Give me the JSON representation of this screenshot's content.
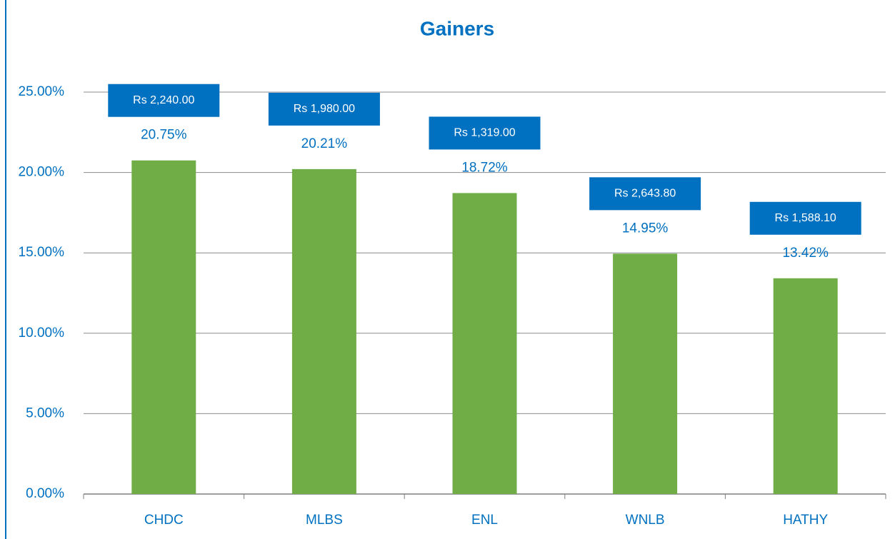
{
  "chart_data": {
    "type": "bar",
    "title": "Gainers",
    "categories": [
      "CHDC",
      "MLBS",
      "ENL",
      "WNLB",
      "HATHY"
    ],
    "values": [
      20.75,
      20.21,
      18.72,
      14.95,
      13.42
    ],
    "value_labels": [
      "20.75%",
      "20.21%",
      "18.72%",
      "14.95%",
      "13.42%"
    ],
    "annotations": [
      "Rs 2,240.00",
      "Rs 1,980.00",
      "Rs 1,319.00",
      "Rs 2,643.80",
      "Rs 1,588.10"
    ],
    "color": "#70ad47",
    "annotation_color": "#0070c0",
    "ylim": [
      0,
      25
    ],
    "yticks": [
      {
        "value": 0,
        "label": "0.00%"
      },
      {
        "value": 5,
        "label": "5.00%"
      },
      {
        "value": 10,
        "label": "10.00%"
      },
      {
        "value": 15,
        "label": "15.00%"
      },
      {
        "value": 20,
        "label": "20.00%"
      },
      {
        "value": 25,
        "label": "25.00%"
      }
    ],
    "grid": true
  }
}
